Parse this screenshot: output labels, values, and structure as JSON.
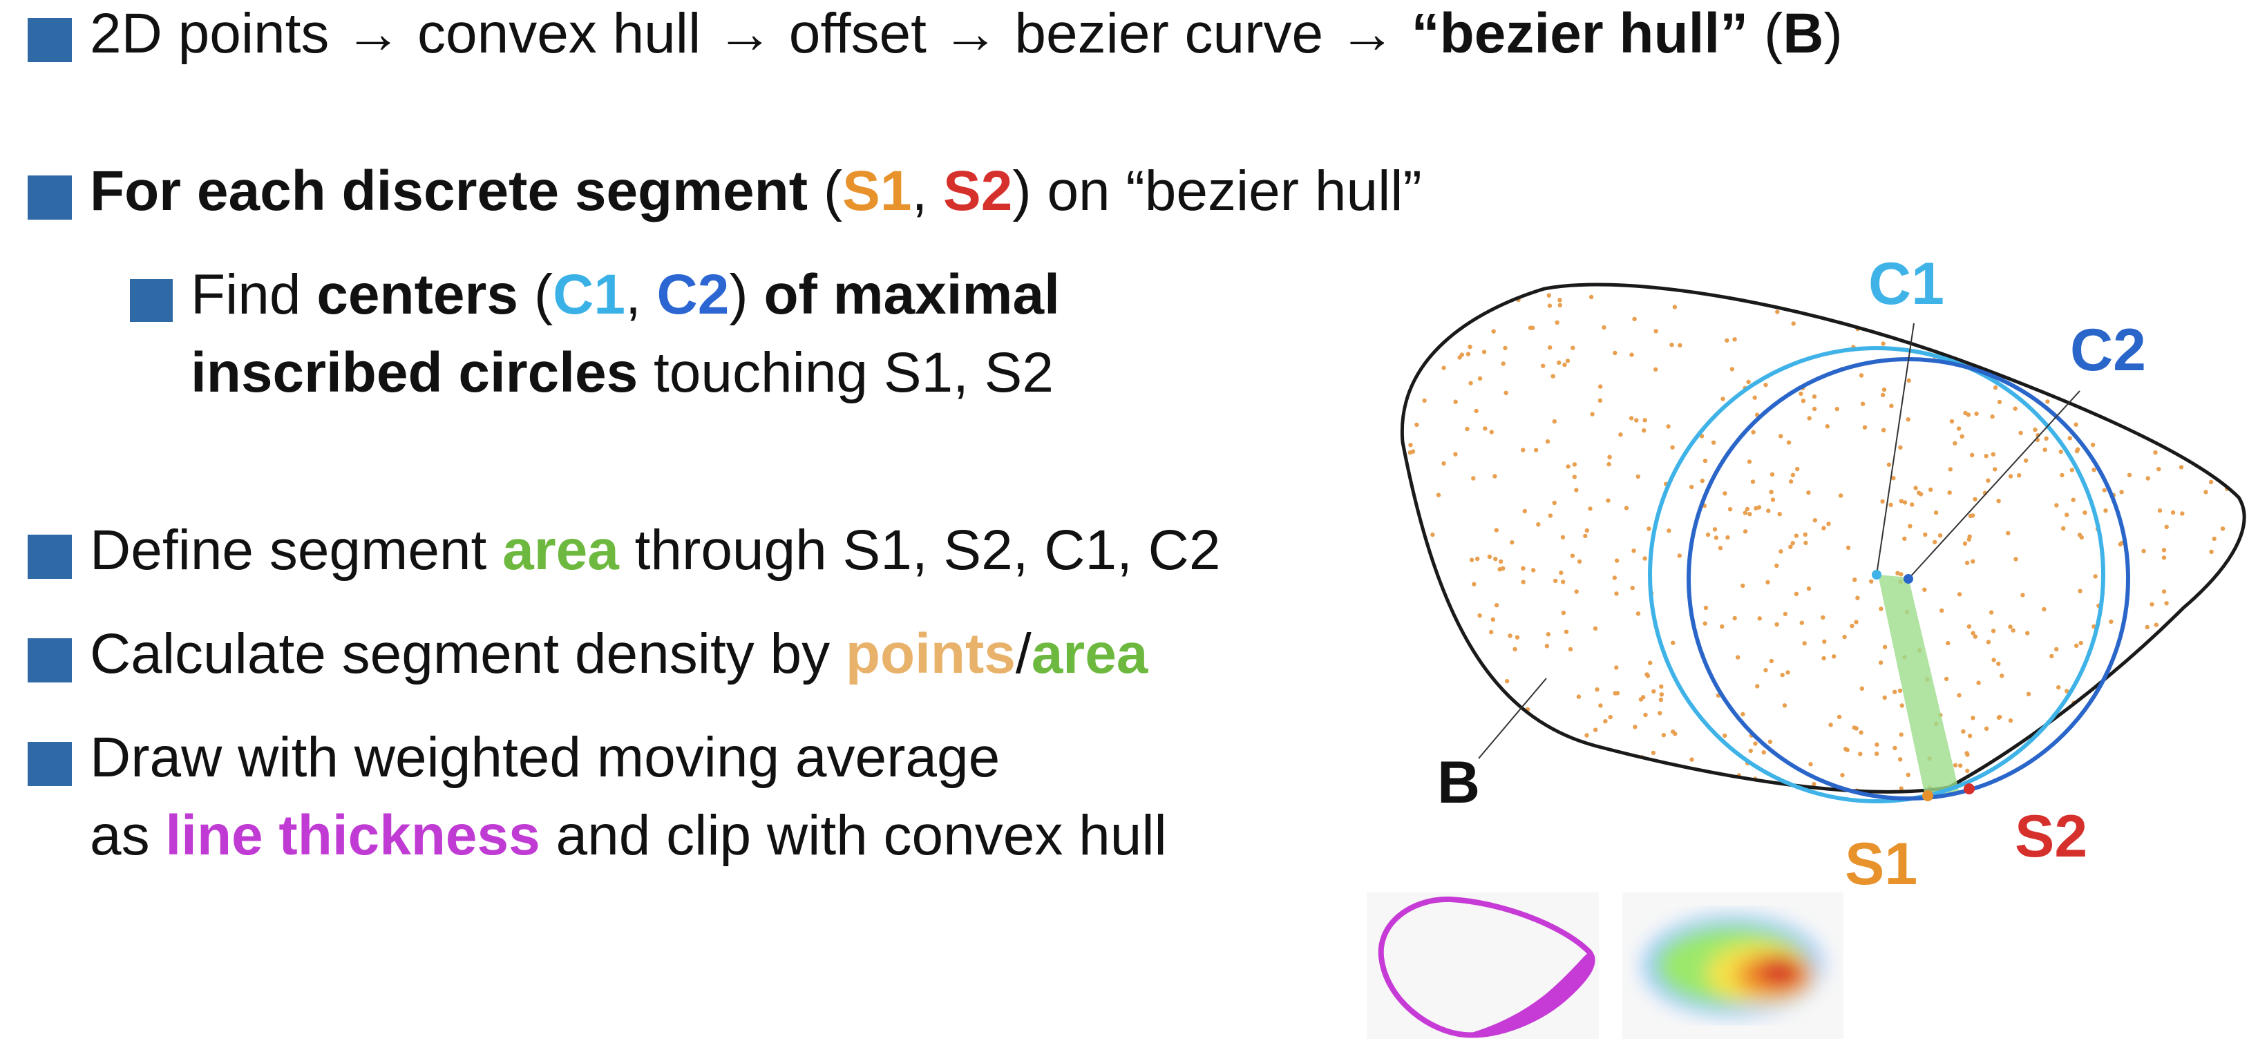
{
  "bullets": {
    "b1": {
      "a": "2D points → convex hull → offset → bezier curve ",
      "arrow": "→",
      "hull": "“bezier hull”",
      "open": " (",
      "b": "B",
      "close": ")"
    },
    "b2": {
      "lead": "For each discrete segment",
      "open": " (",
      "s1": "S1",
      "comma": ", ",
      "s2": "S2",
      "rest": ") on “bezier hull”"
    },
    "b3": {
      "find": "Find ",
      "centers": "centers",
      "open": " (",
      "c1": "C1",
      "comma": ", ",
      "c2": "C2",
      "close": ") ",
      "maximal": "of maximal",
      "inscribed": "inscribed circles",
      "touching": " touching S1, S2"
    },
    "b4": {
      "a": "Define segment ",
      "area": "area",
      "b": " through S1, S2, C1, C2"
    },
    "b5": {
      "a": "Calculate segment density by ",
      "points": "points",
      "slash": "/",
      "area": "area"
    },
    "b6": {
      "line1": "Draw with weighted moving average",
      "as": "as ",
      "thick": "line thickness",
      "rest": " and clip with convex hull"
    }
  },
  "figure": {
    "labels": {
      "c1": "C1",
      "c2": "C2",
      "b": "B",
      "s1": "S1",
      "s2": "S2"
    },
    "colors": {
      "hull": "#1a1a1a",
      "points": "#e8a050",
      "circle_c1": "#3fb3e8",
      "circle_c2": "#2a66c9",
      "area": "#9edc8c",
      "s1": "#e8922c",
      "s2": "#d6302c",
      "thickness": "#c63ad6"
    },
    "point_count": 700
  }
}
